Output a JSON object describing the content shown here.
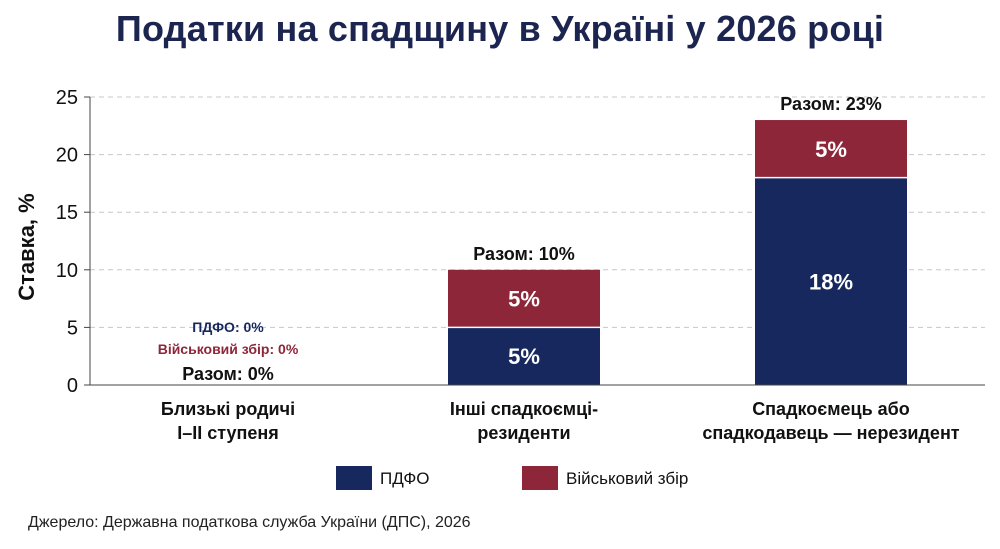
{
  "chart_data": {
    "type": "bar",
    "stacked": true,
    "title": "Податки на спадщину в Україні у 2026 році",
    "ylabel": "Ставка, %",
    "xlabel": "",
    "ylim": [
      0,
      25
    ],
    "yticks": [
      0,
      5,
      10,
      15,
      20,
      25
    ],
    "grid": true,
    "legend_position": "bottom",
    "categories": [
      [
        "Близькі родичі",
        "I–II ступеня"
      ],
      [
        "Інші спадкоємці-",
        "резиденти"
      ],
      [
        "Спадкоємець або",
        "спадкодавець — нерезидент"
      ]
    ],
    "series": [
      {
        "name": "ПДФО",
        "color": "#16285e",
        "values": [
          0,
          5,
          18
        ],
        "labels": [
          "ПДФО: 0%",
          "5%",
          "18%"
        ]
      },
      {
        "name": "Військовий збір",
        "color": "#8e2639",
        "values": [
          0,
          5,
          5
        ],
        "labels": [
          "Військовий збір: 0%",
          "5%",
          "5%"
        ]
      }
    ],
    "totals": [
      0,
      10,
      23
    ],
    "total_labels": [
      "Разом: 0%",
      "Разом: 10%",
      "Разом: 23%"
    ]
  },
  "source": "Джерело: Державна податкова служба України (ДПС), 2026"
}
